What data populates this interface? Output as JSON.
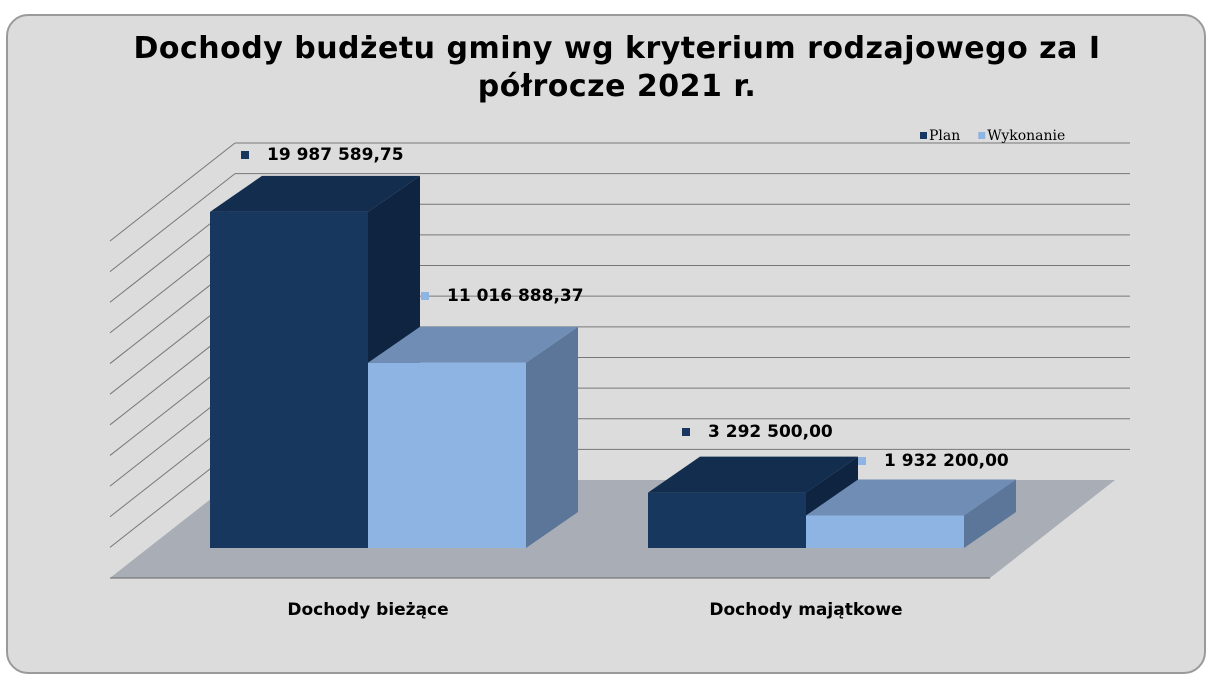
{
  "chart_data": {
    "type": "bar3d",
    "title": "Dochody budżetu gminy wg kryterium rodzajowego za I półrocze 2021 r.",
    "categories": [
      "Dochody bieżące",
      "Dochody majątkowe"
    ],
    "series": [
      {
        "name": "Plan",
        "color": "#17375e",
        "values": [
          19987589.75,
          3292500.0
        ],
        "value_labels": [
          "19 987 589,75",
          "3 292 500,00"
        ]
      },
      {
        "name": "Wykonanie",
        "color": "#8eb4e3",
        "values": [
          11016888.37,
          1932200.0
        ],
        "value_labels": [
          "11 016 888,37",
          "1 932 200,00"
        ]
      }
    ],
    "ylim": [
      0,
      22000000
    ],
    "yticks": [
      0,
      2000000,
      4000000,
      6000000,
      8000000,
      10000000,
      12000000,
      14000000,
      16000000,
      18000000,
      20000000,
      22000000
    ],
    "grid": true,
    "legend": "top-right"
  }
}
